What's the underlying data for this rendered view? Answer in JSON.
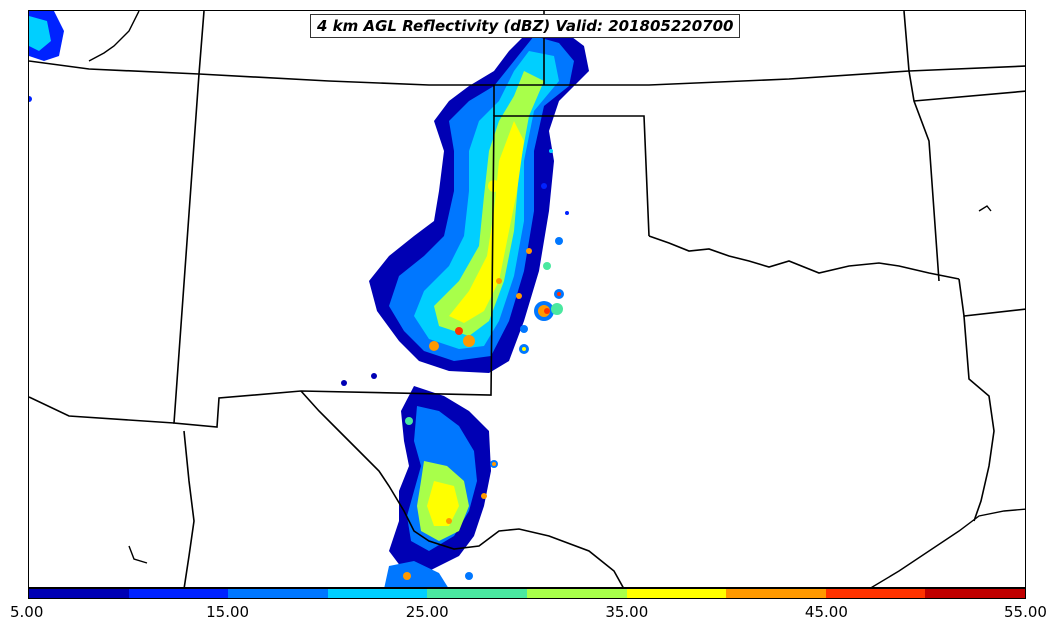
{
  "map": {
    "title": "4 km AGL Reflectivity (dBZ) Valid: 201805220700",
    "layers": [
      "state-boundaries",
      "coastline",
      "reflectivity-contours"
    ]
  },
  "colorbar": {
    "colors": [
      "#0000b4",
      "#0022ff",
      "#0077ff",
      "#00cfff",
      "#4ae8a0",
      "#a8ff4a",
      "#ffff00",
      "#ff9900",
      "#ff3300",
      "#c00000"
    ],
    "tick_labels": [
      "5.00",
      "15.00",
      "25.00",
      "35.00",
      "45.00",
      "55.00"
    ],
    "min": 5,
    "max": 55,
    "unit": "dBZ"
  }
}
